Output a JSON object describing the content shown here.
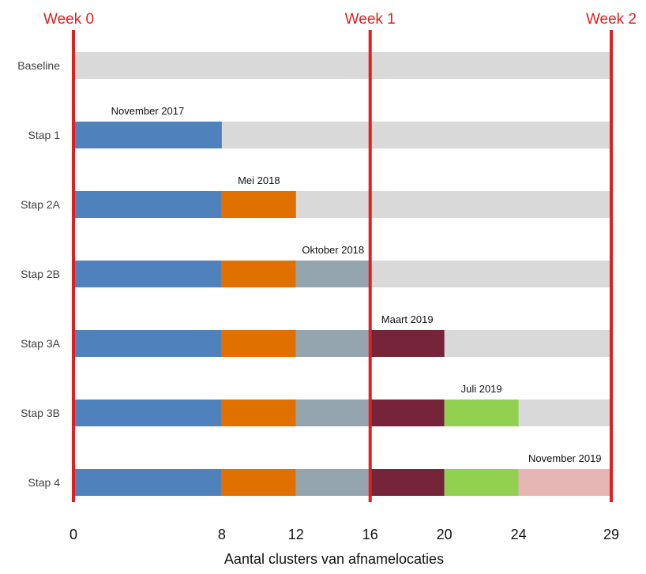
{
  "chart_data": {
    "type": "bar",
    "orientation": "horizontal-stacked",
    "xlabel": "Aantal clusters van afnamelocaties",
    "xlim": [
      0,
      29
    ],
    "xticks": [
      0,
      8,
      12,
      16,
      20,
      24,
      29
    ],
    "categories": [
      "Baseline",
      "Stap 1",
      "Stap 2A",
      "Stap 2B",
      "Stap 3A",
      "Stap 3B",
      "Stap 4"
    ],
    "series": [
      {
        "color": "#4f81bd",
        "values": [
          0,
          8,
          8,
          8,
          8,
          8,
          8
        ]
      },
      {
        "color": "#e07000",
        "values": [
          0,
          0,
          4,
          4,
          4,
          4,
          4
        ]
      },
      {
        "color": "#95a5ae",
        "values": [
          0,
          0,
          0,
          4,
          4,
          4,
          4
        ]
      },
      {
        "color": "#76243a",
        "values": [
          0,
          0,
          0,
          0,
          4,
          4,
          4
        ]
      },
      {
        "color": "#92d050",
        "values": [
          0,
          0,
          0,
          0,
          0,
          4,
          4
        ]
      },
      {
        "color": "#e6b6b4",
        "values": [
          0,
          0,
          0,
          0,
          0,
          0,
          5
        ]
      }
    ],
    "remainder_color": "#d9d9d9",
    "annotations": [
      {
        "category": "Stap 1",
        "text": "November 2017",
        "x": 4
      },
      {
        "category": "Stap 2A",
        "text": "Mei 2018",
        "x": 10
      },
      {
        "category": "Stap 2B",
        "text": "Oktober 2018",
        "x": 14
      },
      {
        "category": "Stap 3A",
        "text": "Maart 2019",
        "x": 18
      },
      {
        "category": "Stap 3B",
        "text": "Juli 2019",
        "x": 22
      },
      {
        "category": "Stap 4",
        "text": "November 2019",
        "x": 26.5
      }
    ],
    "reference_lines": [
      {
        "x": 0,
        "label": "Week 0",
        "color": "#e02020"
      },
      {
        "x": 16,
        "label": "Week 1",
        "color": "#e02020"
      },
      {
        "x": 29,
        "label": "Week 2",
        "color": "#e02020"
      }
    ]
  }
}
